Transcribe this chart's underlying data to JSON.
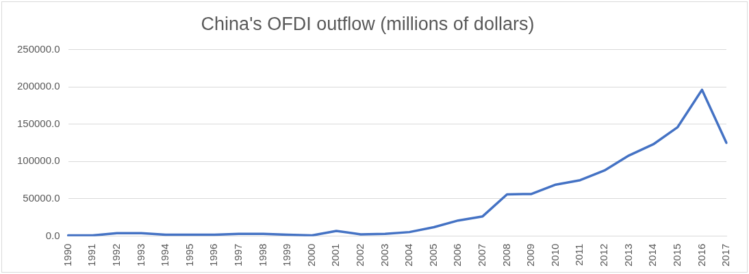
{
  "chart_data": {
    "type": "line",
    "title": "China's OFDI outflow (millions of dollars)",
    "categories": [
      "1990",
      "1991",
      "1992",
      "1993",
      "1994",
      "1995",
      "1996",
      "1997",
      "1998",
      "1999",
      "2000",
      "2001",
      "2002",
      "2003",
      "2004",
      "2005",
      "2006",
      "2007",
      "2008",
      "2009",
      "2010",
      "2011",
      "2012",
      "2013",
      "2014",
      "2015",
      "2016",
      "2017"
    ],
    "series": [
      {
        "color": "#4472c4",
        "values": [
          1000,
          1000,
          4000,
          4000,
          2000,
          2000,
          2000,
          3000,
          3000,
          2000,
          1000,
          7000,
          2500,
          3000,
          5500,
          12000,
          21000,
          26500,
          56000,
          56500,
          69000,
          75000,
          88000,
          108000,
          123000,
          146000,
          196000,
          125000
        ]
      }
    ],
    "ylim": [
      0,
      250000
    ],
    "yticks": [
      {
        "value": 0,
        "label": "0.0"
      },
      {
        "value": 50000,
        "label": "50000.0"
      },
      {
        "value": 100000,
        "label": "100000.0"
      },
      {
        "value": 150000,
        "label": "150000.0"
      },
      {
        "value": 200000,
        "label": "200000.0"
      },
      {
        "value": 250000,
        "label": "250000.0"
      }
    ],
    "grid": "y",
    "legend": false,
    "marker": "none",
    "line_style": "solid"
  }
}
